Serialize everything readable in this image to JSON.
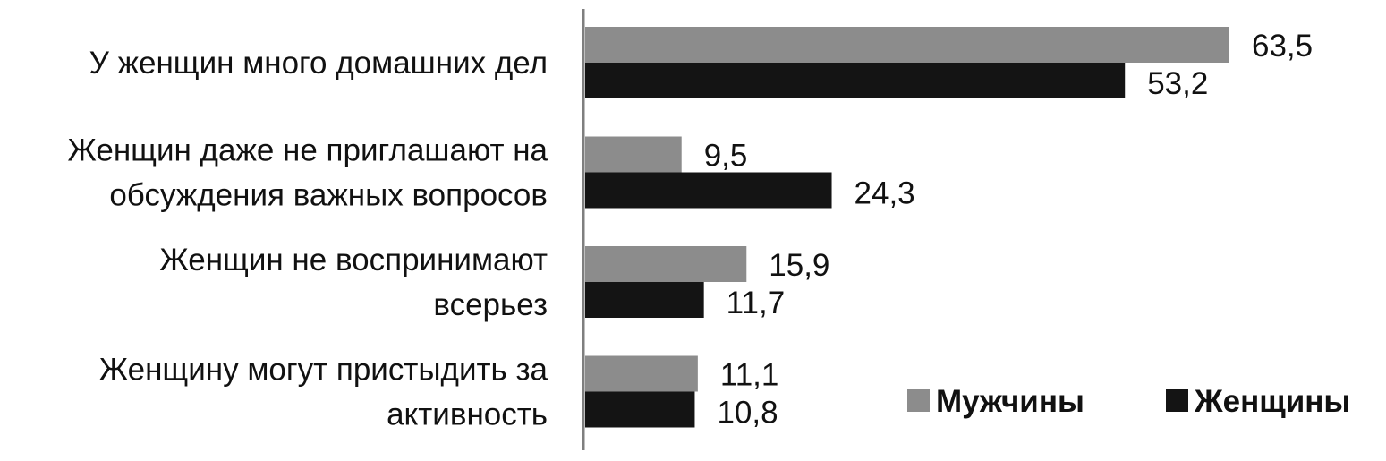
{
  "chart_data": {
    "type": "bar",
    "orientation": "horizontal",
    "categories": [
      [
        "У женщин много домашних дел"
      ],
      [
        "Женщин даже не приглашают на",
        "обсуждения важных вопросов"
      ],
      [
        "Женщин не воспринимают",
        "всерьез"
      ],
      [
        "Женщину могут пристыдить за",
        "активность"
      ]
    ],
    "series": [
      {
        "name": "Мужчины",
        "color": "#8c8c8c",
        "values": [
          63.5,
          9.5,
          15.9,
          11.1
        ],
        "labels": [
          "63,5",
          "9,5",
          "15,9",
          "11,1"
        ]
      },
      {
        "name": "Женщины",
        "color": "#141414",
        "values": [
          53.2,
          24.3,
          11.7,
          10.8
        ],
        "labels": [
          "53,2",
          "24,3",
          "11,7",
          "10,8"
        ]
      }
    ],
    "xlim": [
      0,
      80
    ],
    "grid": false,
    "legend": "bottom-right",
    "title": "",
    "xlabel": "",
    "ylabel": ""
  }
}
